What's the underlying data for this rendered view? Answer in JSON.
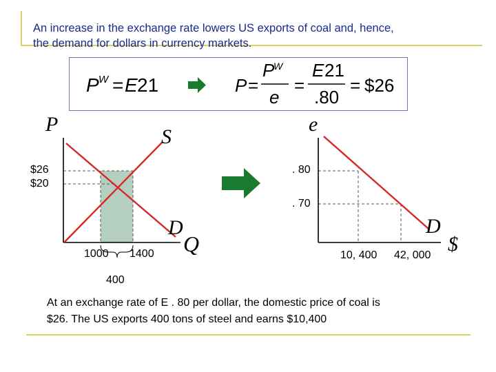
{
  "title_lines": [
    "An increase in the exchange rate lowers US exports of coal and, hence,",
    "the demand for dollars in currency markets."
  ],
  "formula": {
    "left": "P^W = E21",
    "right": "P = P^W / e = E21 / .80 = $26"
  },
  "left_graph": {
    "y_axis_label": "P",
    "x_axis_label": "Q",
    "supply_label": "S",
    "demand_label": "D",
    "price_high": "$26",
    "price_low": "$20",
    "qty_low": "1000",
    "qty_high": "1400",
    "exports_label": "400"
  },
  "right_graph": {
    "y_axis_label": "e",
    "x_axis_label": "$",
    "demand_label": "D",
    "rate_high": ". 80",
    "rate_low": ". 70",
    "dollars_low": "10, 400",
    "dollars_high": "42, 000"
  },
  "note_lines": [
    "At an exchange rate of E . 80 per dollar, the domestic price of coal is",
    "$26.  The US exports 400 tons of steel and earns $10,400"
  ],
  "colors": {
    "title": "#1a2a8c",
    "curve": "#d62828",
    "arrow": "#1a7a2e",
    "shade": "#b4cfc0",
    "rule": "#d8d26a"
  }
}
